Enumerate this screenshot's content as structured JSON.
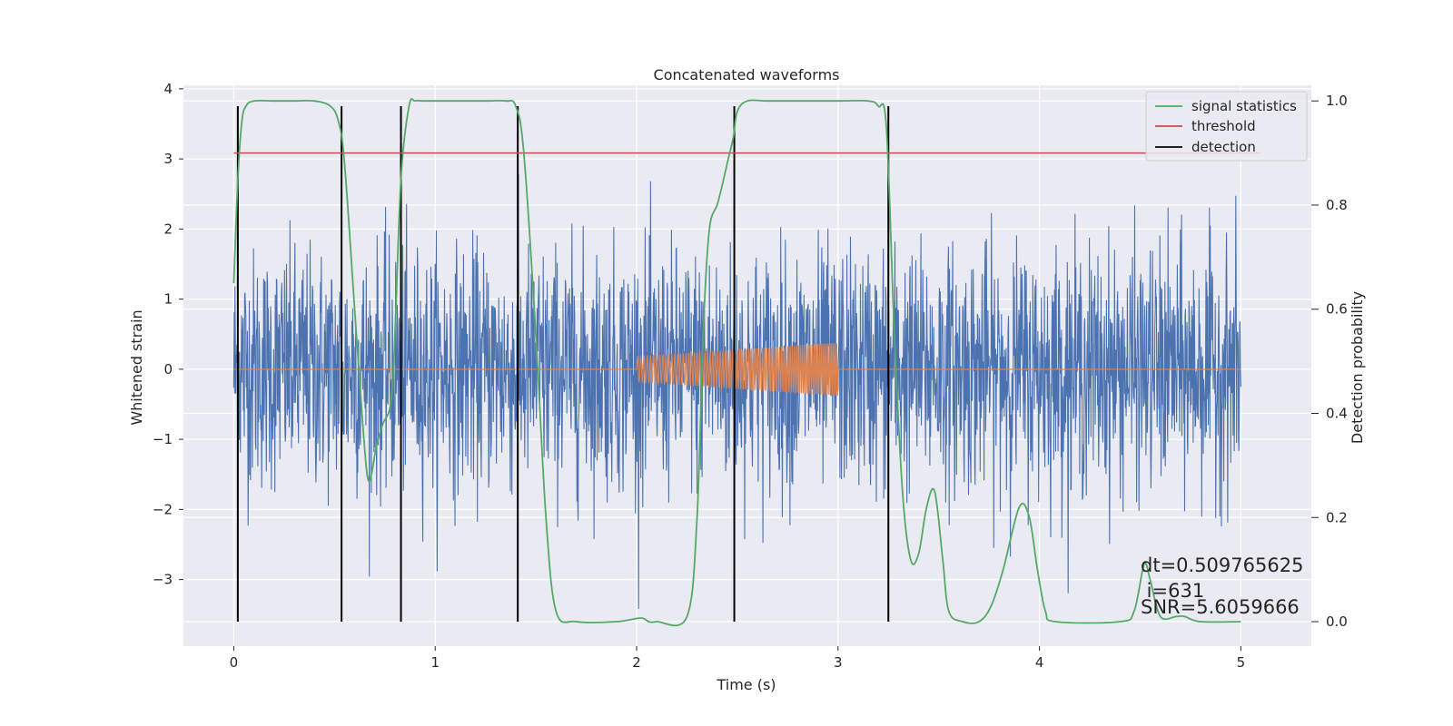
{
  "chart_data": {
    "type": "line",
    "title": "Concatenated waveforms",
    "xlabel": "Time (s)",
    "ylabel": "Whitened strain",
    "y2label": "Detection probability",
    "xlim": [
      -0.25,
      5.35
    ],
    "ylim": [
      -3.95,
      4.05
    ],
    "y2lim": [
      -0.047,
      1.03
    ],
    "xticks": [
      0,
      1,
      2,
      3,
      4,
      5
    ],
    "yticks": [
      -3,
      -2,
      -1,
      0,
      1,
      2,
      3,
      4
    ],
    "y2ticks": [
      0.0,
      0.2,
      0.4,
      0.6,
      0.8,
      1.0
    ],
    "xtick_labels": [
      "0",
      "1",
      "2",
      "3",
      "4",
      "5"
    ],
    "ytick_labels": [
      "−3",
      "−2",
      "−1",
      "0",
      "1",
      "2",
      "3",
      "4"
    ],
    "y2tick_labels": [
      "0.0",
      "0.2",
      "0.4",
      "0.6",
      "0.8",
      "1.0"
    ],
    "grid": true,
    "legend_position": "top-right",
    "colors": {
      "noise": "#4c72b0",
      "injection": "#dd8452",
      "signal_statistics": "#55a868",
      "threshold": "#c44e52",
      "detection": "#000000",
      "axes_bg": "#eaeaf2"
    },
    "series": [
      {
        "name": "signal statistics",
        "axis": "right",
        "x": [
          0,
          0.02,
          0.04,
          0.06,
          0.1,
          0.2,
          0.3,
          0.4,
          0.48,
          0.52,
          0.55,
          0.6,
          0.64,
          0.67,
          0.71,
          0.74,
          0.78,
          0.8,
          0.83,
          0.87,
          0.9,
          0.95,
          1.1,
          1.25,
          1.35,
          1.4,
          1.44,
          1.5,
          1.55,
          1.6,
          1.7,
          1.9,
          2.02,
          2.06,
          2.1,
          2.25,
          2.3,
          2.33,
          2.36,
          2.4,
          2.42,
          2.45,
          2.48,
          2.5,
          2.55,
          2.65,
          2.8,
          3.0,
          3.15,
          3.2,
          3.24,
          3.28,
          3.32,
          3.36,
          3.4,
          3.44,
          3.48,
          3.52,
          3.55,
          3.62,
          3.7,
          3.76,
          3.82,
          3.9,
          3.95,
          3.99,
          4.03,
          4.08,
          4.4,
          4.47,
          4.52,
          4.55,
          4.6,
          4.68,
          4.72,
          4.8,
          5.0
        ],
        "values": [
          0.65,
          0.85,
          0.96,
          0.99,
          1.0,
          1.0,
          1.0,
          1.0,
          0.99,
          0.96,
          0.88,
          0.6,
          0.38,
          0.27,
          0.34,
          0.38,
          0.42,
          0.55,
          0.85,
          0.99,
          1.0,
          1.0,
          1.0,
          1.0,
          1.0,
          0.99,
          0.9,
          0.55,
          0.2,
          0.02,
          0.0,
          0.0,
          0.007,
          0.0,
          0.0,
          0.01,
          0.2,
          0.55,
          0.75,
          0.8,
          0.83,
          0.88,
          0.93,
          0.98,
          1.0,
          1.0,
          1.0,
          1.0,
          1.0,
          0.99,
          0.95,
          0.55,
          0.25,
          0.12,
          0.13,
          0.22,
          0.25,
          0.12,
          0.02,
          0.0,
          0.0,
          0.03,
          0.1,
          0.22,
          0.2,
          0.1,
          0.02,
          0.0,
          0.0,
          0.02,
          0.11,
          0.08,
          0.01,
          0.01,
          0.01,
          0.0,
          0.0
        ]
      },
      {
        "name": "threshold",
        "axis": "right",
        "x": [
          0,
          5.1
        ],
        "values": [
          0.9,
          0.9
        ]
      },
      {
        "name": "detection",
        "axis": "right",
        "type": "vlines",
        "x": [
          0.02,
          0.535,
          0.83,
          1.41,
          2.485,
          3.25
        ],
        "range": [
          0.0,
          0.99
        ]
      }
    ],
    "background_series": [
      {
        "role": "whitened noise",
        "axis": "left",
        "x_range": [
          0,
          5
        ],
        "amplitude_std": 0.85
      },
      {
        "role": "injected waveform",
        "axis": "left",
        "x_range": [
          2.0,
          3.0
        ],
        "amplitude_start": 0.18,
        "amplitude_end": 0.38
      }
    ],
    "annotations": [
      "dt=0.509765625",
      " i=631",
      "SNR=5.6059666"
    ]
  }
}
